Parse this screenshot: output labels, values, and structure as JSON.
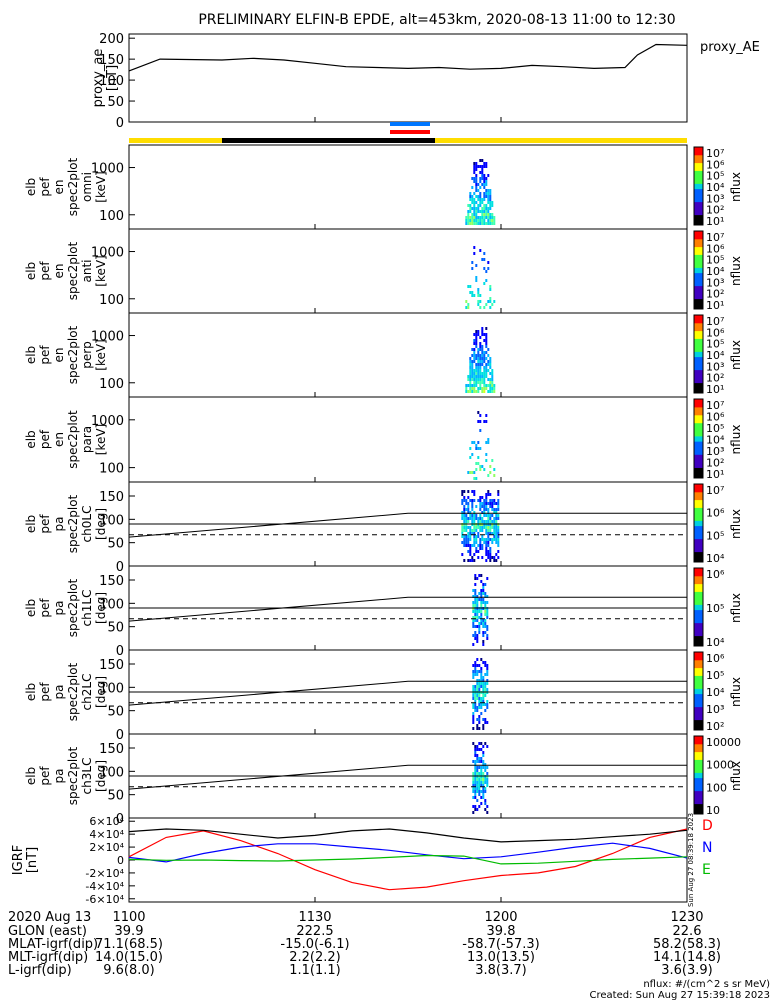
{
  "title": "PRELIMINARY ELFIN-B EPDE, alt=453km, 2020-08-13 11:00 to 12:30",
  "panels": [
    {
      "ylabel": [
        "proxy_ae",
        "[nT]"
      ],
      "yticks": [
        "0",
        "50",
        "100",
        "150",
        "200"
      ],
      "right_label": "proxy_AE"
    },
    {
      "ylabel": [
        "elb",
        "pef",
        "en",
        "spec2plot",
        "omni",
        "[keV]"
      ],
      "yticks": [
        "100",
        "1000"
      ],
      "cbar_ticks": [
        "10⁷",
        "10⁶",
        "10⁵",
        "10⁴",
        "10³",
        "10²",
        "10¹"
      ],
      "cbar_label": "nflux"
    },
    {
      "ylabel": [
        "elb",
        "pef",
        "en",
        "spec2plot",
        "anti",
        "[keV]"
      ],
      "yticks": [
        "100",
        "1000"
      ],
      "cbar_ticks": [
        "10⁷",
        "10⁶",
        "10⁵",
        "10⁴",
        "10³",
        "10²",
        "10¹"
      ],
      "cbar_label": "nflux"
    },
    {
      "ylabel": [
        "elb",
        "pef",
        "en",
        "spec2plot",
        "perp",
        "[keV]"
      ],
      "yticks": [
        "100",
        "1000"
      ],
      "cbar_ticks": [
        "10⁷",
        "10⁶",
        "10⁵",
        "10⁴",
        "10³",
        "10²",
        "10¹"
      ],
      "cbar_label": "nflux"
    },
    {
      "ylabel": [
        "elb",
        "pef",
        "en",
        "spec2plot",
        "para",
        "[keV]"
      ],
      "yticks": [
        "100",
        "1000"
      ],
      "cbar_ticks": [
        "10⁷",
        "10⁶",
        "10⁵",
        "10⁴",
        "10³",
        "10²",
        "10¹"
      ],
      "cbar_label": "nflux"
    },
    {
      "ylabel": [
        "elb",
        "pef",
        "pa",
        "spec2plot",
        "ch0LC",
        "[deg]"
      ],
      "yticks": [
        "0",
        "50",
        "100",
        "150"
      ],
      "cbar_ticks": [
        "10⁷",
        "10⁶",
        "10⁵",
        "10⁴"
      ],
      "cbar_label": "nflux"
    },
    {
      "ylabel": [
        "elb",
        "pef",
        "pa",
        "spec2plot",
        "ch1LC",
        "[deg]"
      ],
      "yticks": [
        "0",
        "50",
        "100",
        "150"
      ],
      "cbar_ticks": [
        "10⁶",
        "10⁵",
        "10⁴"
      ],
      "cbar_label": "nflux"
    },
    {
      "ylabel": [
        "elb",
        "pef",
        "pa",
        "spec2plot",
        "ch2LC",
        "[deg]"
      ],
      "yticks": [
        "0",
        "50",
        "100",
        "150"
      ],
      "cbar_ticks": [
        "10⁶",
        "10⁵",
        "10⁴",
        "10³",
        "10²"
      ],
      "cbar_label": "nflux"
    },
    {
      "ylabel": [
        "elb",
        "pef",
        "pa",
        "spec2plot",
        "ch3LC",
        "[deg]"
      ],
      "yticks": [
        "0",
        "50",
        "100",
        "150"
      ],
      "cbar_ticks": [
        "10000",
        "1000",
        "100",
        "10"
      ],
      "cbar_label": "nflux"
    },
    {
      "ylabel": [
        "IGRF",
        "[nT]"
      ],
      "yticks": [
        "-6×10⁴",
        "-4×10⁴",
        "-2×10⁴",
        "0",
        "2×10⁴",
        "4×10⁴",
        "6×10⁴"
      ],
      "legend": [
        "D",
        "N",
        "E"
      ]
    }
  ],
  "colors": {
    "D": "#ff0000",
    "N": "#0000ff",
    "E": "#00bb00",
    "total": "#000000",
    "day": "#ffdd00",
    "night": "#000000",
    "ind_blue": "#0077ff",
    "ind_red": "#ff0000"
  },
  "chart_data": {
    "type": "spectrogram_stack",
    "time_range": [
      "11:00",
      "12:30"
    ],
    "x_ticks": [
      "1100",
      "1130",
      "1200",
      "1230"
    ],
    "proxy_ae": {
      "x": [
        "11:00",
        "11:05",
        "11:15",
        "11:20",
        "11:25",
        "11:30",
        "11:35",
        "11:40",
        "11:45",
        "11:50",
        "11:55",
        "12:00",
        "12:05",
        "12:10",
        "12:15",
        "12:20",
        "12:22",
        "12:25",
        "12:30"
      ],
      "y": [
        122,
        150,
        148,
        152,
        148,
        140,
        132,
        130,
        128,
        130,
        126,
        128,
        135,
        132,
        128,
        130,
        160,
        185,
        183
      ],
      "ylim": [
        0,
        210
      ]
    },
    "energy_ylim": [
      50,
      3000
    ],
    "pa_ylim": [
      0,
      180
    ],
    "pa_lines": [
      {
        "style": "solid",
        "points": [
          [
            0,
            62
          ],
          [
            0.5,
            113
          ],
          [
            1,
            113
          ]
        ]
      },
      {
        "style": "solid",
        "points": [
          [
            0,
            90
          ],
          [
            1,
            90
          ]
        ]
      },
      {
        "style": "dashed",
        "points": [
          [
            0,
            67
          ],
          [
            1,
            67
          ]
        ]
      }
    ],
    "igrf": {
      "ylim": [
        -65000,
        65000
      ],
      "series": [
        {
          "name": "D",
          "y": [
            5000,
            35000,
            45000,
            30000,
            10000,
            -15000,
            -35000,
            -46000,
            -42000,
            -32000,
            -24000,
            -20000,
            -10000,
            10000,
            35000,
            48000
          ]
        },
        {
          "name": "N",
          "y": [
            4000,
            -3000,
            10000,
            20000,
            25000,
            25000,
            20000,
            15000,
            8000,
            2000,
            5000,
            12000,
            20000,
            26000,
            18000,
            3000
          ]
        },
        {
          "name": "E",
          "y": [
            1000,
            -500,
            0,
            -1000,
            -1500,
            0,
            1500,
            4000,
            7000,
            6000,
            -6000,
            -5000,
            -2000,
            1000,
            3000,
            5000
          ]
        },
        {
          "name": "total",
          "y": [
            44000,
            48000,
            46000,
            40000,
            34000,
            38000,
            45000,
            48000,
            42000,
            34000,
            28000,
            30000,
            32000,
            36000,
            40000,
            46000
          ]
        }
      ]
    },
    "footer": {
      "row_labels": [
        "2020 Aug 13",
        "GLON (east)",
        "MLAT-igrf(dip)",
        "MLT-igrf(dip)",
        "L-igrf(dip)"
      ],
      "columns": [
        [
          "1100",
          "39.9",
          "71.1(68.5)",
          "14.0(15.0)",
          "9.6(8.0)"
        ],
        [
          "1130",
          "222.5",
          "-15.0(-6.1)",
          "2.2(2.2)",
          "1.1(1.1)"
        ],
        [
          "1200",
          "39.8",
          "-58.7(-57.3)",
          "13.0(13.5)",
          "3.8(3.7)"
        ],
        [
          "1230",
          "22.6",
          "58.2(58.3)",
          "14.1(14.8)",
          "3.6(3.9)"
        ]
      ]
    },
    "unit_note": "nflux: #/(cm^2 s sr MeV)",
    "created": "Created: Sun Aug 27 15:39:18 2023",
    "side_stamp": "Sun Aug 27 08:39:18 2023"
  }
}
